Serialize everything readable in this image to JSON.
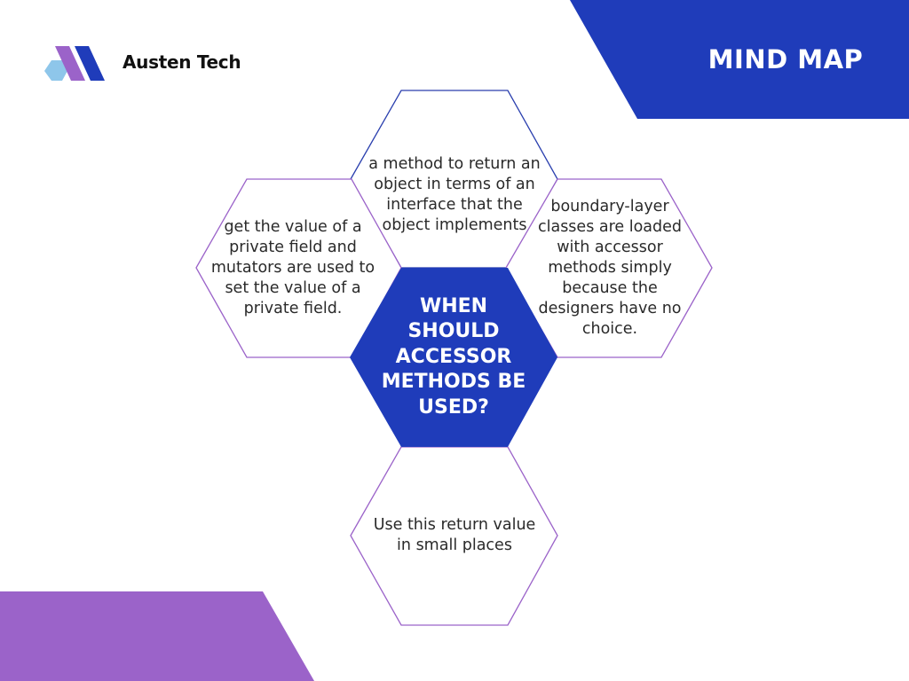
{
  "brand": {
    "name": "Austen Tech"
  },
  "header": {
    "title": "MIND MAP"
  },
  "colors": {
    "primary_blue": "#1f3cba",
    "purple": "#9b63c9",
    "light_blue": "#8ec6ea",
    "hex_outline_blue": "#2a3fae",
    "hex_outline_purple": "#9b63c9"
  },
  "mind_map": {
    "center": "WHEN SHOULD ACCESSOR METHODS BE USED?",
    "nodes": {
      "top": "a method to return an object in terms of an interface that the object implements",
      "left": "get the value of a private field and mutators are used to set the value of a private field.",
      "right": "boundary-layer classes are loaded with accessor methods simply because the designers have no choice.",
      "bottom": "Use this return value in small places"
    }
  }
}
